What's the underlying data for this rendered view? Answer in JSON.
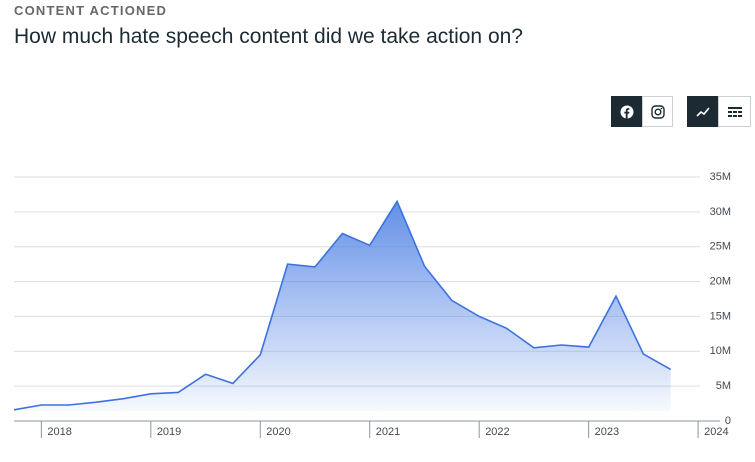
{
  "header": {
    "kicker": "CONTENT ACTIONED",
    "title": "How much hate speech content did we take action on?"
  },
  "chart_data": {
    "type": "area",
    "x": [
      2017.75,
      2018.0,
      2018.25,
      2018.5,
      2018.75,
      2019.0,
      2019.25,
      2019.5,
      2019.75,
      2020.0,
      2020.25,
      2020.5,
      2020.75,
      2021.0,
      2021.25,
      2021.5,
      2021.75,
      2022.0,
      2022.25,
      2022.5,
      2022.75,
      2023.0,
      2023.25,
      2023.5,
      2023.75
    ],
    "series": [
      {
        "color": "#3d72de",
        "values": [
          1600000,
          2300000,
          2300000,
          2700000,
          3200000,
          3900000,
          4100000,
          6700000,
          5400000,
          9500000,
          22500000,
          22100000,
          26900000,
          25200000,
          31500000,
          22200000,
          17300000,
          15000000,
          13300000,
          10500000,
          10900000,
          10600000,
          17900000,
          9600000,
          7400000
        ]
      }
    ],
    "xlim": [
      2017.75,
      2024.2
    ],
    "xticks": [
      2018,
      2019,
      2020,
      2021,
      2022,
      2023,
      2024
    ],
    "ylim": [
      0,
      35000000
    ],
    "yticks": [
      0,
      {
        "value": 5000000,
        "label": "5M"
      },
      {
        "value": 10000000,
        "label": "10M"
      },
      {
        "value": 15000000,
        "label": "15M"
      },
      {
        "value": 20000000,
        "label": "20M"
      },
      {
        "value": 25000000,
        "label": "25M"
      },
      {
        "value": 30000000,
        "label": "30M"
      },
      {
        "value": 35000000,
        "label": "35M"
      }
    ],
    "grid": true
  }
}
